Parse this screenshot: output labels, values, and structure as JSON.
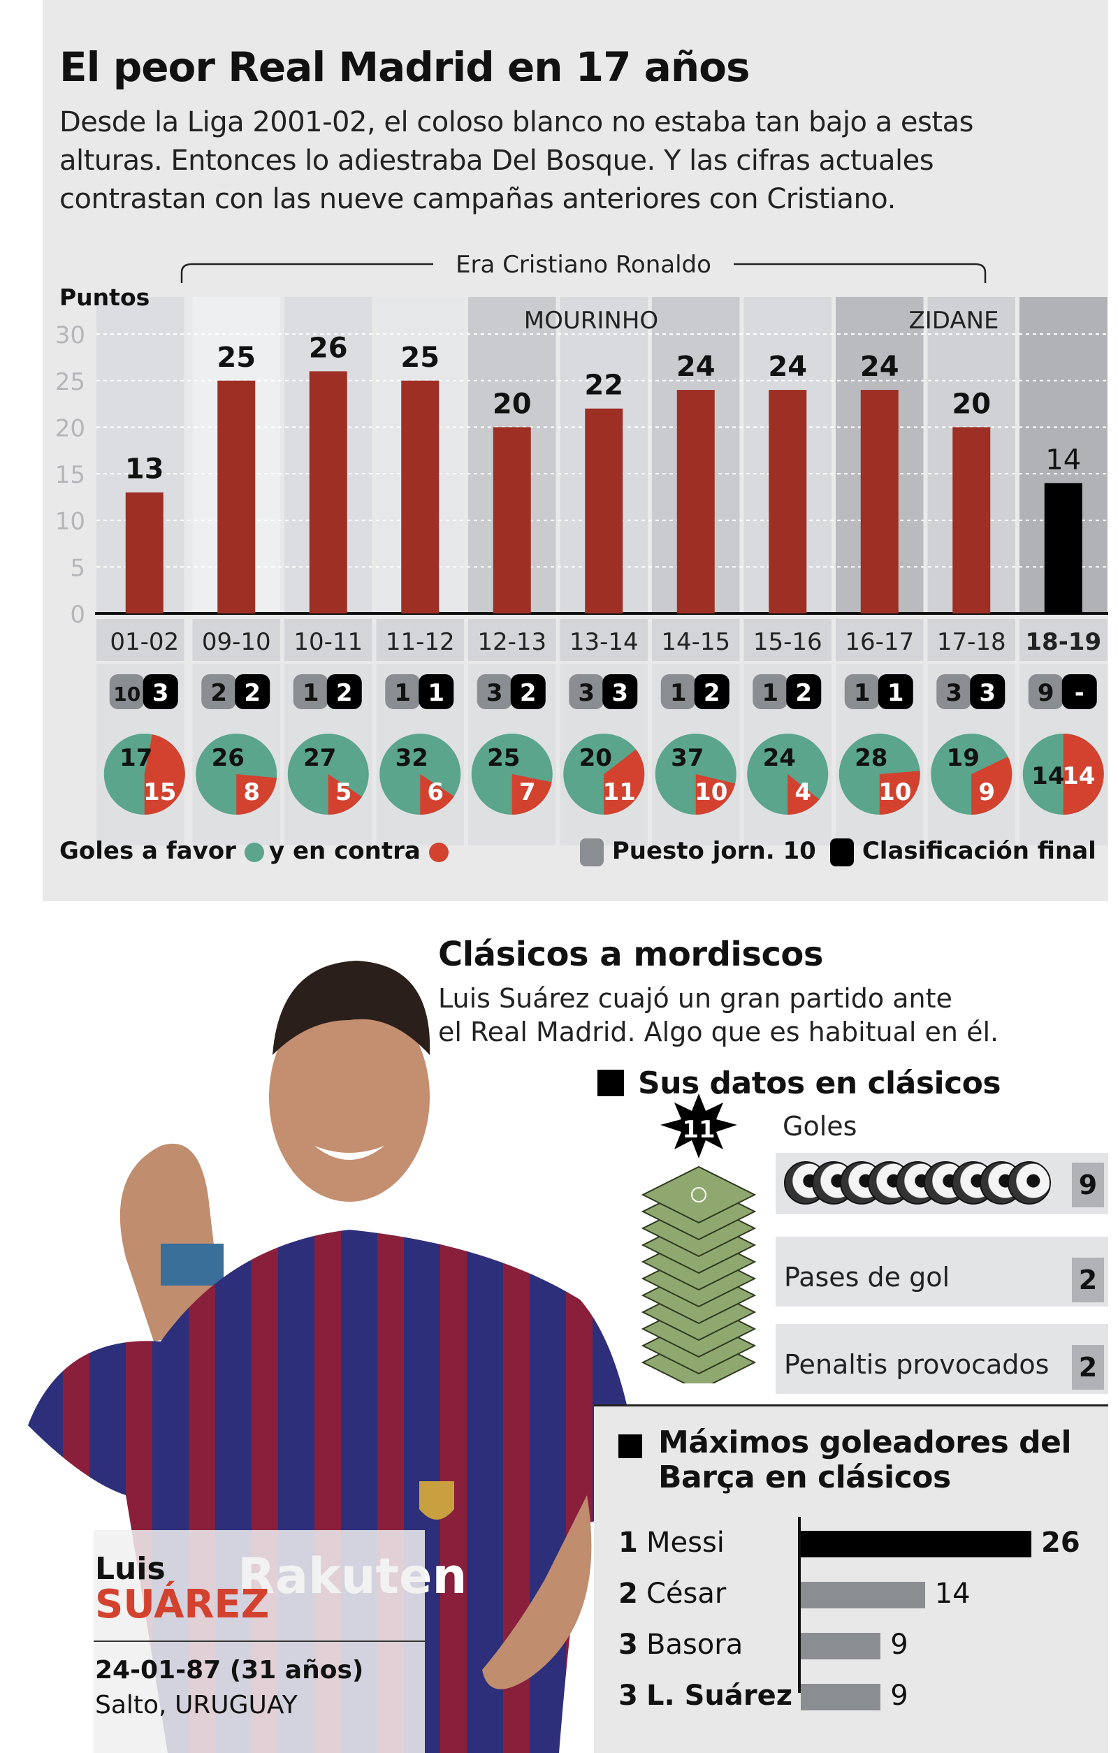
{
  "header": {
    "title": "El peor Real Madrid en 17 años",
    "subtitle_lines": [
      "Desde la Liga 2001-02, el coloso blanco no estaba tan bajo a estas",
      "alturas. Entonces lo adiestraba Del Bosque. Y las cifras actuales",
      "contrastan con las nueve campañas anteriores con Cristiano."
    ]
  },
  "chart_data": {
    "type": "bar",
    "ylabel": "Puntos",
    "ylim": [
      0,
      30
    ],
    "yticks": [
      0,
      5,
      10,
      15,
      20,
      25,
      30
    ],
    "grid": true,
    "categories": [
      "01-02",
      "09-10",
      "10-11",
      "11-12",
      "12-13",
      "13-14",
      "14-15",
      "15-16",
      "16-17",
      "17-18",
      "18-19"
    ],
    "values": [
      13,
      25,
      26,
      25,
      20,
      22,
      24,
      24,
      24,
      20,
      14
    ],
    "bar_colors": {
      "past": "#9e2f24",
      "current": "#000000"
    },
    "annotations": {
      "era": "Era Cristiano Ronaldo",
      "coach1": "MOURINHO",
      "coach2": "ZIDANE"
    },
    "puesto_jornada_10": [
      "10",
      "2",
      "1",
      "1",
      "3",
      "3",
      "1",
      "1",
      "1",
      "3",
      "9"
    ],
    "clasificacion_final": [
      "3",
      "2",
      "2",
      "1",
      "2",
      "3",
      "2",
      "2",
      "1",
      "3",
      "-"
    ],
    "goles_a_favor": [
      17,
      26,
      27,
      32,
      25,
      20,
      37,
      24,
      28,
      19,
      14
    ],
    "goles_en_contra": [
      15,
      8,
      5,
      6,
      7,
      11,
      10,
      4,
      10,
      9,
      14
    ],
    "colors": {
      "favor": "#5aa58b",
      "contra": "#d2422f",
      "puesto": "#8a8d91",
      "final": "#000000"
    },
    "legend": {
      "favor": "Goles a favor",
      "contra": "y en contra",
      "puesto": "Puesto jorn. 10",
      "final": "Clasificación final"
    }
  },
  "player": {
    "first": "Luis",
    "last": "SUÁREZ",
    "birth": "24-01-87 (31 años)",
    "place": "Salto, URUGUAY",
    "jersey_sponsor": "Rakuten"
  },
  "clasicos": {
    "title": "Clásicos a mordiscos",
    "text_lines": [
      "Luis Suárez cuajó un gran partido ante",
      "el Real Madrid. Algo que es habitual en él."
    ],
    "datos_title": "Sus datos en clásicos",
    "partidos": "11",
    "stats": [
      {
        "label": "Goles",
        "value": "9"
      },
      {
        "label": "Pases de gol",
        "value": "2"
      },
      {
        "label": "Penaltis provocados",
        "value": "2"
      }
    ]
  },
  "scorers": {
    "title_lines": [
      "Máximos goleadores del",
      "Barça en clásicos"
    ],
    "rows": [
      {
        "rank": "1",
        "name": "Messi",
        "value": 26
      },
      {
        "rank": "2",
        "name": "César",
        "value": 14
      },
      {
        "rank": "3",
        "name": "Basora",
        "value": 9
      },
      {
        "rank": "3",
        "name": "L. Suárez",
        "value": 9
      }
    ]
  }
}
